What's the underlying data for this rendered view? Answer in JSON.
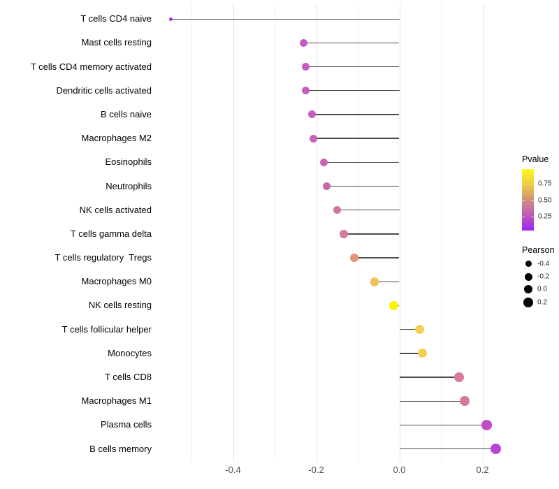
{
  "chart_data": {
    "type": "lollipop",
    "title": "",
    "xlabel": "",
    "ylabel": "",
    "xlim": [
      -0.575,
      0.285
    ],
    "grid": "vertical-only",
    "x_major_ticks": [
      -0.4,
      -0.2,
      0.0,
      0.2
    ],
    "x_major_labels": [
      "-0.4",
      "-0.2",
      "0.0",
      "0.2"
    ],
    "x_minor_ticks": [
      -0.5,
      -0.3,
      -0.1,
      0.1
    ],
    "points": [
      {
        "category": "T cells CD4 naive",
        "pearson": -0.55,
        "color": "#a12ce8",
        "diameter": 5
      },
      {
        "category": "Mast cells resting",
        "pearson": -0.23,
        "color": "#c55cc6",
        "diameter": 11
      },
      {
        "category": "T cells CD4 memory activated",
        "pearson": -0.226,
        "color": "#c55dc4",
        "diameter": 11
      },
      {
        "category": "Dendritic cells activated",
        "pearson": -0.225,
        "color": "#c55dc4",
        "diameter": 11
      },
      {
        "category": "B cells naive",
        "pearson": -0.21,
        "color": "#c660be",
        "diameter": 11
      },
      {
        "category": "Macrophages M2",
        "pearson": -0.206,
        "color": "#c763ba",
        "diameter": 11
      },
      {
        "category": "Eosinophils",
        "pearson": -0.181,
        "color": "#c965b4",
        "diameter": 11
      },
      {
        "category": "Neutrophils",
        "pearson": -0.174,
        "color": "#ca68b0",
        "diameter": 11
      },
      {
        "category": "NK cells activated",
        "pearson": -0.15,
        "color": "#d172a2",
        "diameter": 11.5
      },
      {
        "category": "T cells gamma delta",
        "pearson": -0.134,
        "color": "#d77c96",
        "diameter": 11.5
      },
      {
        "category": "T cells regulatory  Tregs",
        "pearson": -0.108,
        "color": "#e2937a",
        "diameter": 12
      },
      {
        "category": "Macrophages M0",
        "pearson": -0.06,
        "color": "#efc557",
        "diameter": 12.5
      },
      {
        "category": "NK cells resting",
        "pearson": -0.013,
        "color": "#f8f307",
        "diameter": 12.7
      },
      {
        "category": "T cells follicular helper",
        "pearson": 0.048,
        "color": "#f1cf52",
        "diameter": 13
      },
      {
        "category": "Monocytes",
        "pearson": 0.055,
        "color": "#f1ce54",
        "diameter": 13
      },
      {
        "category": "T cells CD8",
        "pearson": 0.144,
        "color": "#d77d9c",
        "diameter": 13.5
      },
      {
        "category": "Macrophages M1",
        "pearson": 0.157,
        "color": "#d47aa2",
        "diameter": 13.5
      },
      {
        "category": "Plasma cells",
        "pearson": 0.21,
        "color": "#c04cca",
        "diameter": 14.5
      },
      {
        "category": "B cells memory",
        "pearson": 0.232,
        "color": "#b843d4",
        "diameter": 15
      }
    ],
    "legend": {
      "pvalue": {
        "title": "Pvalue",
        "tick_labels": [
          "0.75",
          "0.50",
          "0.25"
        ],
        "tick_values": [
          0.75,
          0.5,
          0.25
        ],
        "range": [
          0,
          1
        ],
        "gradient_high_color": "#fdf823",
        "gradient_mid_color": "#d08f78",
        "gradient_low_color": "#a020f0",
        "position": "right"
      },
      "pearson_size": {
        "title": "Pearson",
        "tick_labels": [
          "-0.4",
          "-0.2",
          "0.0",
          "0.2"
        ],
        "tick_values": [
          -0.4,
          -0.2,
          0.0,
          0.2
        ],
        "dot_color": "#000000",
        "dot_diameters": [
          9,
          11,
          12.5,
          14
        ],
        "position": "right"
      }
    },
    "stem_color": "#4a4a4a",
    "major_grid_color": "#e3e3e3",
    "minor_grid_color": "#f1f1f1"
  }
}
